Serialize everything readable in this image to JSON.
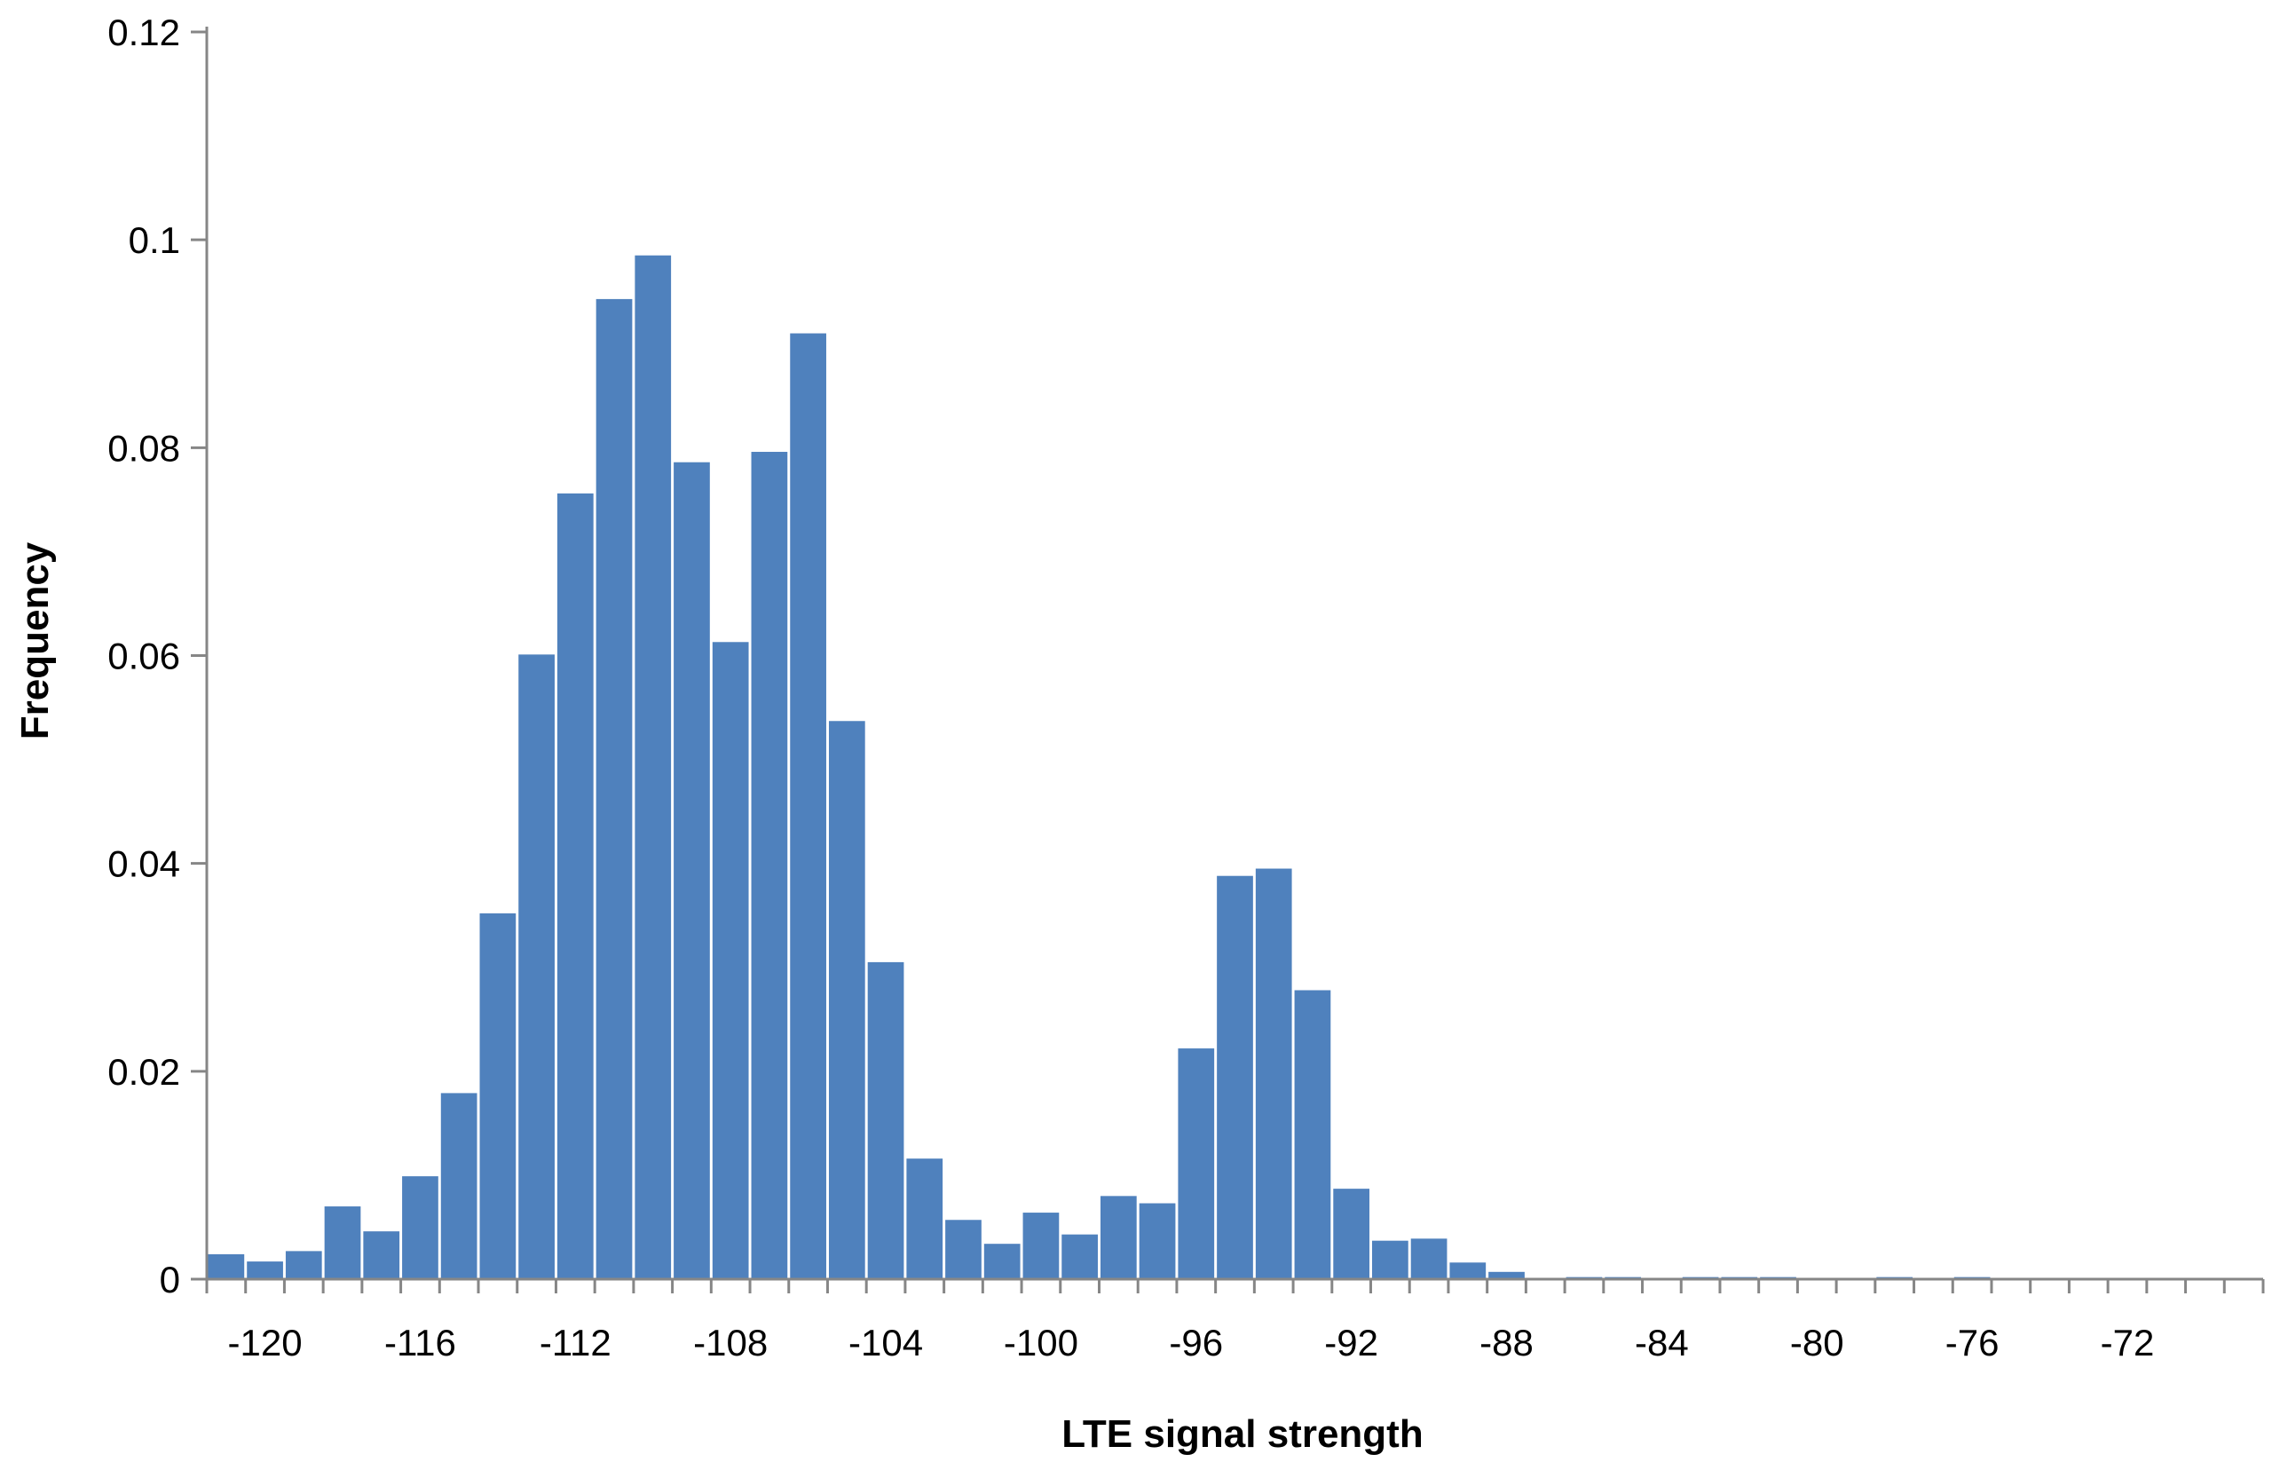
{
  "chart_data": {
    "type": "bar",
    "xlabel": "LTE signal strength",
    "ylabel": "Frequency",
    "ylim": [
      0,
      0.12
    ],
    "xlim": [
      -121,
      -68
    ],
    "y_ticks": [
      "0",
      "0.02",
      "0.04",
      "0.06",
      "0.08",
      "0.1",
      "0.12"
    ],
    "y_tick_values": [
      0,
      0.02,
      0.04,
      0.06,
      0.08,
      0.1,
      0.12
    ],
    "x_ticks": [
      "-120",
      "-116",
      "-112",
      "-108",
      "-104",
      "-100",
      "-96",
      "-92",
      "-88",
      "-84",
      "-80",
      "-76",
      "-72"
    ],
    "x_tick_values": [
      -120,
      -116,
      -112,
      -108,
      -104,
      -100,
      -96,
      -92,
      -88,
      -84,
      -80,
      -76,
      -72
    ],
    "bar_color": "#4F81BD",
    "axis_color": "#868686",
    "grid": false,
    "legend": "none",
    "categories": [
      -121,
      -120,
      -119,
      -118,
      -117,
      -116,
      -115,
      -114,
      -113,
      -112,
      -111,
      -110,
      -109,
      -108,
      -107,
      -106,
      -105,
      -104,
      -103,
      -102,
      -101,
      -100,
      -99,
      -98,
      -97,
      -96,
      -95,
      -94,
      -93,
      -92,
      -91,
      -90,
      -89,
      -88,
      -87,
      -86,
      -85,
      -84,
      -83,
      -82,
      -81,
      -80,
      -79,
      -78,
      -77,
      -76,
      -75,
      -74,
      -73,
      -72,
      -71,
      -70,
      -69
    ],
    "values": [
      0.0024,
      0.0017,
      0.0027,
      0.007,
      0.0046,
      0.0099,
      0.0179,
      0.0352,
      0.0601,
      0.0756,
      0.0943,
      0.0985,
      0.0786,
      0.0613,
      0.0796,
      0.091,
      0.0537,
      0.0305,
      0.0116,
      0.0057,
      0.0034,
      0.0064,
      0.0043,
      0.008,
      0.0073,
      0.0222,
      0.0388,
      0.0395,
      0.0278,
      0.0087,
      0.0037,
      0.0039,
      0.0016,
      0.0007,
      0.0001,
      0.0002,
      0.0002,
      0.0001,
      0.0002,
      0.0002,
      0.0002,
      0.0001,
      0.0001,
      0.0002,
      0.0001,
      0.0002,
      0.0001,
      0.0001,
      0.0001,
      0.0001,
      0.0001,
      0.0001,
      0.0001
    ]
  }
}
